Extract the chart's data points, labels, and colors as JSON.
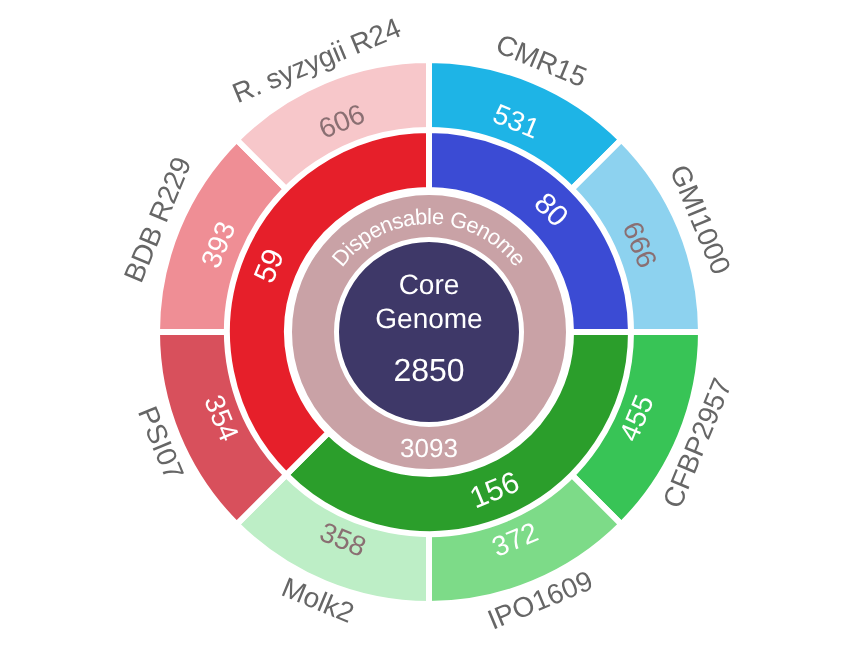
{
  "chart_data": {
    "type": "other",
    "data_labels": true,
    "categories": [
      "CMR15",
      "GMI1000",
      "CFBP2957",
      "IPO1609",
      "Molk2",
      "PSI07",
      "BDB R229",
      "R. syzygii R24"
    ],
    "values": [
      531,
      666,
      455,
      372,
      358,
      354,
      393,
      606
    ],
    "colors": [
      "#1eb4e6",
      "#8dd2ef",
      "#38c456",
      "#7ddb88",
      "#bdeec6",
      "#d8505c",
      "#ef8e95",
      "#f7c7ca"
    ],
    "annotations": [
      "80",
      "156",
      "59",
      "Dispensable Genome",
      "3093",
      "Core Genome",
      "2850"
    ]
  }
}
